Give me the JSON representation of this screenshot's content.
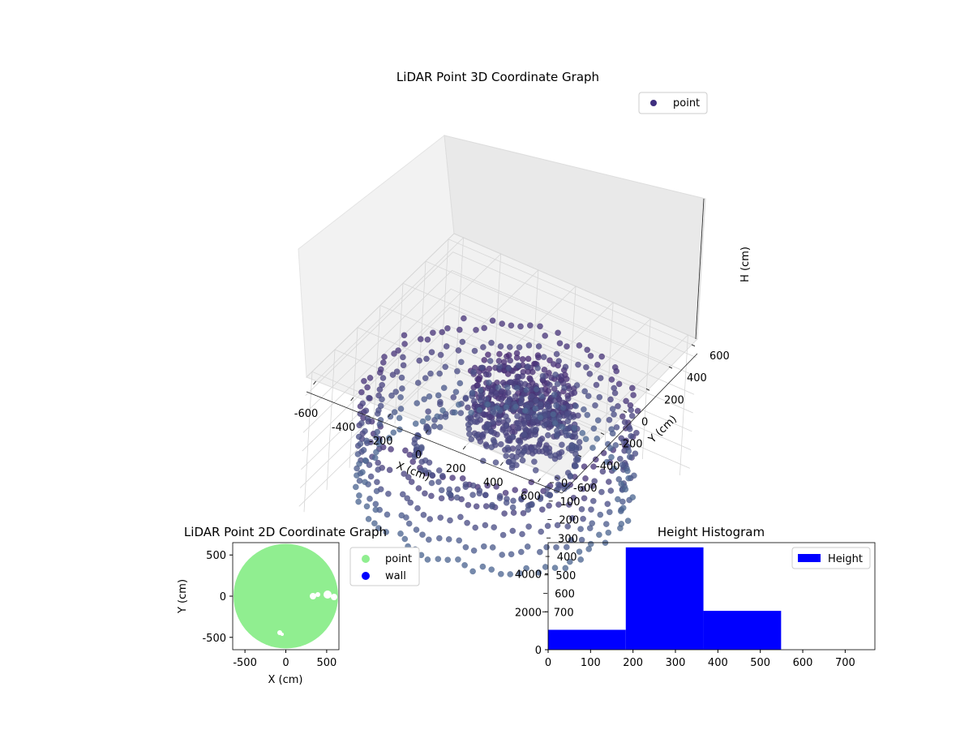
{
  "chart_data": [
    {
      "type": "scatter",
      "projection": "3d",
      "title": "LiDAR Point 3D Coordinate Graph",
      "xlabel": "X (cm)",
      "ylabel": "Y (cm)",
      "zlabel": "H (cm)",
      "xlim": [
        -650,
        650
      ],
      "ylim": [
        -650,
        650
      ],
      "zlim": [
        0,
        760
      ],
      "z_inverted": true,
      "xticks": [
        -600,
        -400,
        -200,
        0,
        200,
        400,
        600
      ],
      "yticks": [
        -600,
        -400,
        -200,
        0,
        200,
        400,
        600
      ],
      "zticks": [
        0,
        100,
        200,
        300,
        400,
        500,
        600,
        700
      ],
      "grid": true,
      "legend": {
        "placement": "upper right",
        "entries": [
          {
            "label": "point",
            "color": "#3f2f7f"
          }
        ]
      },
      "series": [
        {
          "name": "point",
          "colormap": "viridis (dark purple to slate blue)",
          "structure": [
            {
              "part": "outer ring",
              "radius_cm": [
                560,
                640
              ],
              "height_cm": [
                250,
                700
              ]
            },
            {
              "part": "inner ring",
              "radius_cm": [
                340,
                380
              ],
              "height_cm": [
                450,
                560
              ]
            },
            {
              "part": "central dense cluster",
              "radius_cm": [
                0,
                260
              ],
              "height_cm": [
                150,
                480
              ]
            }
          ]
        }
      ]
    },
    {
      "type": "scatter",
      "title": "LiDAR Point 2D Coordinate Graph",
      "xlabel": "X (cm)",
      "ylabel": "Y (cm)",
      "xlim": [
        -650,
        650
      ],
      "ylim": [
        -650,
        650
      ],
      "xticks": [
        -500,
        0,
        500
      ],
      "yticks": [
        -500,
        0,
        500
      ],
      "legend": {
        "placement": "outside right",
        "entries": [
          {
            "label": "point",
            "color": "#90ee90"
          },
          {
            "label": "wall",
            "color": "#0000ff"
          }
        ]
      },
      "series": [
        {
          "name": "point",
          "color": "#90ee90",
          "shape": "filled disk",
          "center": [
            0,
            0
          ],
          "radius_cm": 640
        },
        {
          "name": "wall",
          "color": "#0000ff",
          "points": []
        }
      ]
    },
    {
      "type": "bar",
      "subtype": "histogram",
      "title": "Height Histogram",
      "xlabel": "",
      "ylabel": "",
      "xlim": [
        0,
        770
      ],
      "ylim": [
        0,
        5650
      ],
      "xticks": [
        0,
        100,
        200,
        300,
        400,
        500,
        600,
        700
      ],
      "yticks": [
        0,
        2000,
        4000
      ],
      "legend": {
        "placement": "upper right",
        "entries": [
          {
            "label": "Height",
            "color": "#0000ff"
          }
        ]
      },
      "series": [
        {
          "name": "Height",
          "color": "#0000ff",
          "bins": [
            {
              "from": 0,
              "to": 183,
              "count": 1050
            },
            {
              "from": 183,
              "to": 366,
              "count": 5400
            },
            {
              "from": 366,
              "to": 549,
              "count": 2050
            },
            {
              "from": 549,
              "to": 732,
              "count": 0
            }
          ]
        }
      ]
    }
  ]
}
